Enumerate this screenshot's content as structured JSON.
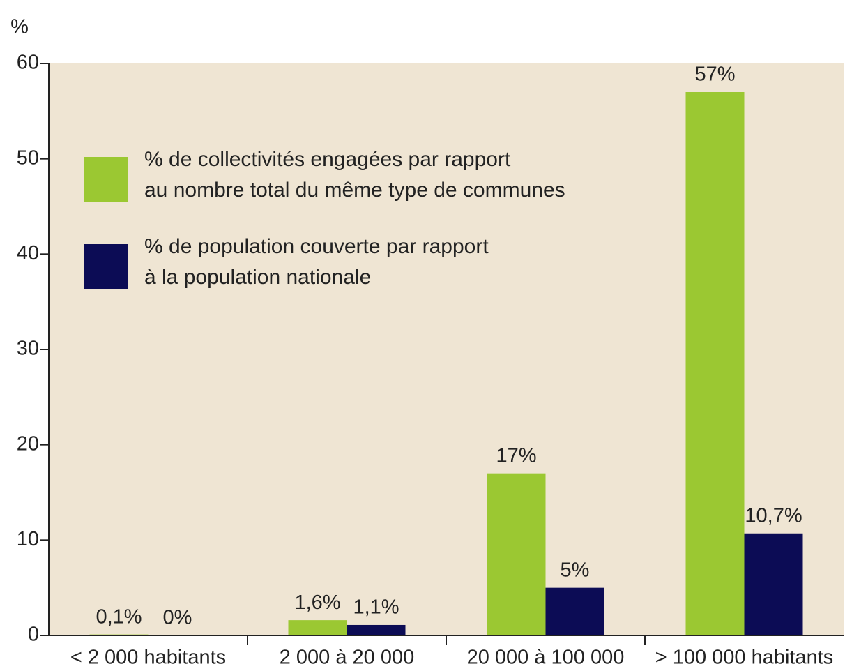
{
  "chart_data": {
    "type": "bar",
    "y_label": "%",
    "categories": [
      "< 2 000 habitants",
      "2 000 à 20 000",
      "20 000 à 100 000",
      "> 100 000 habitants"
    ],
    "series": [
      {
        "name": "% de collectivités engagées par rapport\n au nombre total du même type de communes",
        "color": "#9bc832",
        "values": [
          0.1,
          1.6,
          17,
          57
        ],
        "value_labels": [
          "0,1%",
          "1,6%",
          "17%",
          "57%"
        ]
      },
      {
        "name": "% de population couverte par rapport\nà la population nationale",
        "color": "#0c0c55",
        "values": [
          0,
          1.1,
          5,
          10.7
        ],
        "value_labels": [
          "0%",
          "1,1%",
          "5%",
          "10,7%"
        ]
      }
    ],
    "ylim": [
      0,
      60
    ],
    "yticks": [
      0,
      10,
      20,
      30,
      40,
      50,
      60
    ],
    "background": "#efe5d3"
  }
}
